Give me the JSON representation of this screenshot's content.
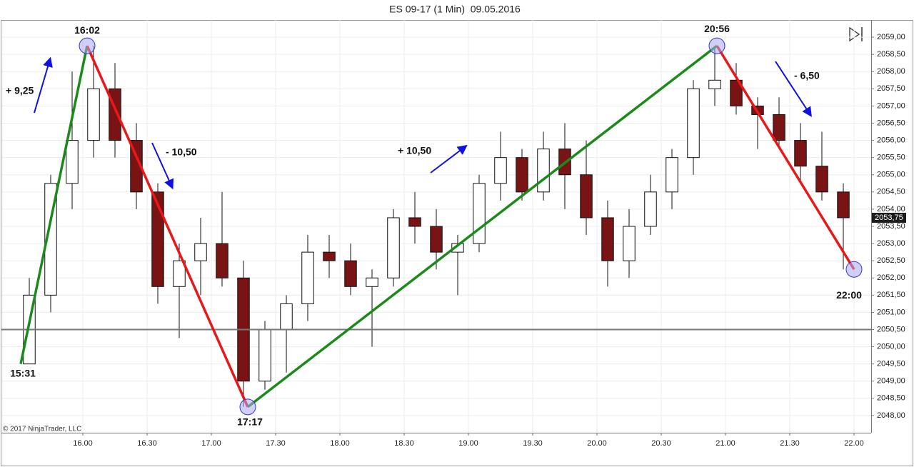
{
  "chart_data": {
    "type": "candlestick",
    "title": "ES 09-17 (1 Min)  09.05.2016",
    "copyright": "© 2017 NinjaTrader, LLC",
    "x": [
      "15:30",
      "15:40",
      "15:50",
      "16:00",
      "16:10",
      "16:20",
      "16:30",
      "16:40",
      "16:50",
      "17:00",
      "17:10",
      "17:20",
      "17:30",
      "17:40",
      "17:50",
      "18:00",
      "18:10",
      "18:20",
      "18:30",
      "18:40",
      "18:50",
      "19:00",
      "19:10",
      "19:20",
      "19:30",
      "19:40",
      "19:50",
      "20:00",
      "20:10",
      "20:20",
      "20:30",
      "20:40",
      "20:50",
      "21:00",
      "21:10",
      "21:20",
      "21:30",
      "21:40",
      "21:50"
    ],
    "open": [
      2049.5,
      2051.5,
      2054.75,
      2056.0,
      2057.5,
      2056.0,
      2054.5,
      2051.75,
      2052.5,
      2053.0,
      2052.0,
      2049.0,
      2050.5,
      2051.25,
      2052.75,
      2052.5,
      2051.75,
      2052.0,
      2053.75,
      2053.5,
      2052.75,
      2053.0,
      2054.75,
      2055.5,
      2054.5,
      2055.75,
      2055.0,
      2053.75,
      2052.5,
      2053.5,
      2054.5,
      2055.5,
      2057.5,
      2057.75,
      2057.0,
      2056.75,
      2056.0,
      2055.25,
      2054.5
    ],
    "high": [
      2052.0,
      2055.0,
      2058.0,
      2058.75,
      2058.25,
      2056.5,
      2054.75,
      2053.0,
      2053.75,
      2054.5,
      2052.5,
      2050.75,
      2051.5,
      2053.25,
      2053.25,
      2053.0,
      2052.25,
      2054.0,
      2054.5,
      2054.0,
      2053.25,
      2055.0,
      2056.25,
      2055.75,
      2056.25,
      2056.5,
      2056.0,
      2054.25,
      2054.0,
      2055.0,
      2055.75,
      2057.75,
      2058.75,
      2058.25,
      2057.25,
      2057.25,
      2056.5,
      2056.25,
      2054.75
    ],
    "low": [
      2049.5,
      2051.0,
      2054.0,
      2055.5,
      2055.5,
      2054.0,
      2051.25,
      2050.25,
      2051.5,
      2051.75,
      2048.25,
      2048.75,
      2049.25,
      2050.75,
      2052.0,
      2051.5,
      2050.0,
      2051.75,
      2053.0,
      2052.25,
      2051.5,
      2052.75,
      2054.25,
      2054.25,
      2054.25,
      2054.0,
      2053.25,
      2051.75,
      2052.0,
      2053.25,
      2054.0,
      2055.0,
      2057.0,
      2056.75,
      2055.75,
      2055.75,
      2054.75,
      2054.25,
      2052.25
    ],
    "close": [
      2051.5,
      2054.75,
      2056.0,
      2057.5,
      2056.0,
      2054.5,
      2051.75,
      2052.5,
      2053.0,
      2052.0,
      2049.0,
      2050.5,
      2051.25,
      2052.75,
      2052.5,
      2051.75,
      2052.0,
      2053.75,
      2053.5,
      2052.75,
      2053.0,
      2054.75,
      2055.5,
      2054.5,
      2055.75,
      2055.0,
      2053.75,
      2052.5,
      2053.5,
      2054.5,
      2055.5,
      2057.5,
      2057.75,
      2057.0,
      2056.75,
      2056.0,
      2055.25,
      2054.5,
      2053.75
    ],
    "up_color": "#ffffff",
    "down_color": "#7a1414",
    "wick_color": "#111111",
    "xlim": [
      "15:22",
      "22:08"
    ],
    "xticks": [
      {
        "value": "16:00",
        "label": "16.00"
      },
      {
        "value": "16:30",
        "label": "16.30"
      },
      {
        "value": "17:00",
        "label": "17.00"
      },
      {
        "value": "17:30",
        "label": "17.30"
      },
      {
        "value": "18:00",
        "label": "18.00"
      },
      {
        "value": "18:30",
        "label": "18.30"
      },
      {
        "value": "19:00",
        "label": "19.00"
      },
      {
        "value": "19:30",
        "label": "19.30"
      },
      {
        "value": "20:00",
        "label": "20.00"
      },
      {
        "value": "20:30",
        "label": "20.30"
      },
      {
        "value": "21:00",
        "label": "21.00"
      },
      {
        "value": "21:30",
        "label": "21.30"
      },
      {
        "value": "22:00",
        "label": "22.00"
      }
    ],
    "ylim": [
      2047.5,
      2059.5
    ],
    "yticks": [
      {
        "value": 2048,
        "label": "2048,00"
      },
      {
        "value": 2048.5,
        "label": "2048,50"
      },
      {
        "value": 2049,
        "label": "2049,00"
      },
      {
        "value": 2049.5,
        "label": "2049,50"
      },
      {
        "value": 2050,
        "label": "2050,00"
      },
      {
        "value": 2050.5,
        "label": "2050,50"
      },
      {
        "value": 2051,
        "label": "2051,00"
      },
      {
        "value": 2051.5,
        "label": "2051,50"
      },
      {
        "value": 2052,
        "label": "2052,00"
      },
      {
        "value": 2052.5,
        "label": "2052,50"
      },
      {
        "value": 2053,
        "label": "2053,00"
      },
      {
        "value": 2053.5,
        "label": "2053,50"
      },
      {
        "value": 2054,
        "label": "2054,00"
      },
      {
        "value": 2054.5,
        "label": "2054,50"
      },
      {
        "value": 2055,
        "label": "2055,00"
      },
      {
        "value": 2055.5,
        "label": "2055,50"
      },
      {
        "value": 2056,
        "label": "2056,00"
      },
      {
        "value": 2056.5,
        "label": "2056,50"
      },
      {
        "value": 2057,
        "label": "2057,00"
      },
      {
        "value": 2057.5,
        "label": "2057,50"
      },
      {
        "value": 2058,
        "label": "2058,00"
      },
      {
        "value": 2058.5,
        "label": "2058,50"
      },
      {
        "value": 2059,
        "label": "2059,00"
      }
    ],
    "grid": true,
    "last_price": {
      "value": 2053.75,
      "label": "2053,75"
    },
    "reference_line": {
      "value": 2050.5,
      "color": "#777777"
    },
    "zigzag": {
      "x": [
        "15:31",
        "16:02",
        "17:17",
        "20:56",
        "22:00"
      ],
      "values": [
        2049.5,
        2058.75,
        2048.25,
        2058.75,
        2052.25
      ],
      "up_color": "#1b8a1b",
      "down_color": "#e81818",
      "marker_color": "#a8a8f0"
    },
    "moves": [
      "+ 9,25",
      "- 10,50",
      "+ 10,50",
      "- 6,50"
    ],
    "arrow_color": "#1010e0"
  }
}
